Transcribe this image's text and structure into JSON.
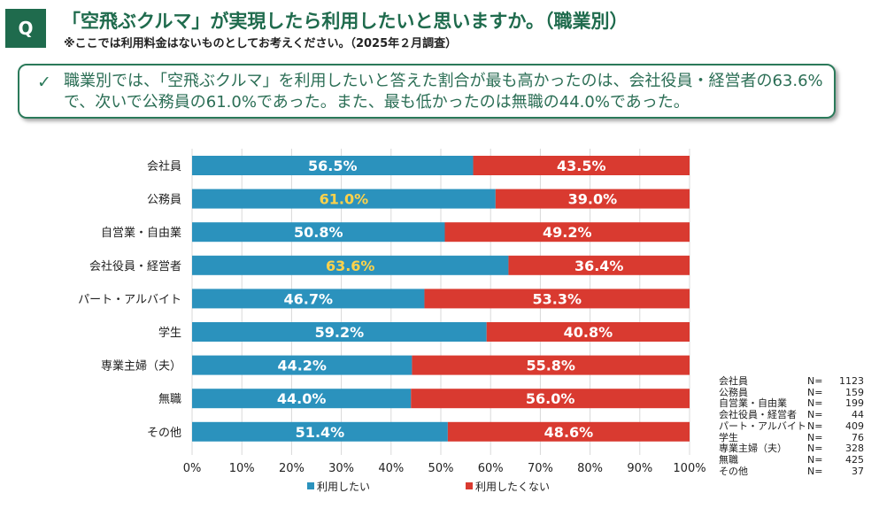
{
  "header": {
    "badge": "Q",
    "title": "「空飛ぶクルマ」が実現したら利用したいと思いますか。（職業別）",
    "subtitle": "※ここでは利用料金はないものとしてお考えください。（2025年２月調査）"
  },
  "summary": {
    "check": "✓",
    "text": "職業別では、「空飛ぶクルマ」を利用したいと答えた割合が最も高かったのは、会社役員・経営者の63.6%で、次いで公務員の61.0%であった。また、最も低かったのは無職の44.0%であった。"
  },
  "chart_data": {
    "type": "bar",
    "orientation": "horizontal",
    "stacked": true,
    "categories": [
      "会社員",
      "公務員",
      "自営業・自由業",
      "会社役員・経営者",
      "パート・アルバイト",
      "学生",
      "専業主婦（夫）",
      "無職",
      "その他"
    ],
    "series": [
      {
        "name": "利用したい",
        "values": [
          56.5,
          61.0,
          50.8,
          63.6,
          46.7,
          59.2,
          44.2,
          44.0,
          51.4
        ],
        "color": "#2b92bd"
      },
      {
        "name": "利用したくない",
        "values": [
          43.5,
          39.0,
          49.2,
          36.4,
          53.3,
          40.8,
          55.8,
          56.0,
          48.6
        ],
        "color": "#d93a30"
      }
    ],
    "highlighted_label_color": "#ffd24a",
    "highlighted_categories": [
      "公務員",
      "会社役員・経営者"
    ],
    "xlim": [
      0,
      100
    ],
    "xticks": [
      "0%",
      "10%",
      "20%",
      "30%",
      "40%",
      "50%",
      "60%",
      "70%",
      "80%",
      "90%",
      "100%"
    ],
    "grid": true,
    "legend": "bottom",
    "sample_sizes": [
      {
        "name": "会社員",
        "eq": "N=",
        "n": "1123"
      },
      {
        "name": "公務員",
        "eq": "N=",
        "n": "159"
      },
      {
        "name": "自営業・自由業",
        "eq": "N=",
        "n": "199"
      },
      {
        "name": "会社役員・経営者",
        "eq": "N=",
        "n": "44"
      },
      {
        "name": "パート・アルバイト",
        "eq": "N=",
        "n": "409"
      },
      {
        "name": "学生",
        "eq": "N=",
        "n": "76"
      },
      {
        "name": "専業主婦（夫）",
        "eq": "N=",
        "n": "328"
      },
      {
        "name": "無職",
        "eq": "N=",
        "n": "425"
      },
      {
        "name": "その他",
        "eq": "N=",
        "n": "37"
      }
    ]
  }
}
